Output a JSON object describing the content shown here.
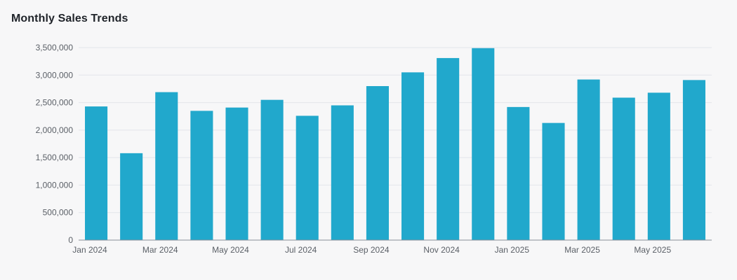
{
  "chart_data": {
    "type": "bar",
    "title": "Monthly Sales Trends",
    "xlabel": "",
    "ylabel": "",
    "color": "#21a8cc",
    "grid": true,
    "legend": "none",
    "ylim": [
      0,
      3500000
    ],
    "yticks": [
      0,
      500000,
      1000000,
      1500000,
      2000000,
      2500000,
      3000000,
      3500000
    ],
    "ytick_labels": [
      "0",
      "500,000",
      "1,000,000",
      "1,500,000",
      "2,000,000",
      "2,500,000",
      "3,000,000",
      "3,500,000"
    ],
    "categories": [
      "Jan 2024",
      "Feb 2024",
      "Mar 2024",
      "Apr 2024",
      "May 2024",
      "Jun 2024",
      "Jul 2024",
      "Aug 2024",
      "Sep 2024",
      "Oct 2024",
      "Nov 2024",
      "Dec 2024",
      "Jan 2025",
      "Feb 2025",
      "Mar 2025",
      "Apr 2025",
      "May 2025",
      "Jun 2025"
    ],
    "xtick_labels": [
      "Jan 2024",
      "Mar 2024",
      "May 2024",
      "Jul 2024",
      "Sep 2024",
      "Nov 2024",
      "Jan 2025",
      "Mar 2025",
      "May 2025"
    ],
    "values": [
      2430000,
      1580000,
      2690000,
      2350000,
      2410000,
      2550000,
      2260000,
      2450000,
      2800000,
      3050000,
      3310000,
      3490000,
      2420000,
      2130000,
      2920000,
      2590000,
      2680000,
      2910000
    ]
  }
}
